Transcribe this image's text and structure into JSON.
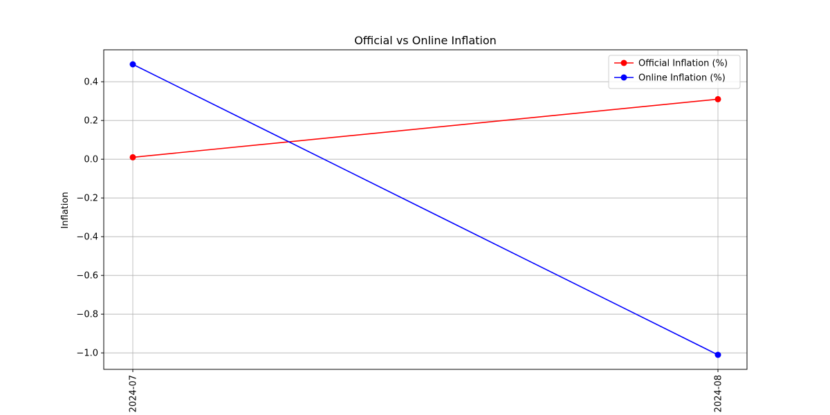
{
  "chart_data": {
    "type": "line",
    "title": "Official vs Online Inflation",
    "xlabel": "",
    "ylabel": "Inflation",
    "x": [
      "2024-07",
      "2024-08"
    ],
    "series": [
      {
        "name": "Official Inflation (%)",
        "values": [
          0.01,
          0.31
        ],
        "color": "#ff0000",
        "marker": "circle"
      },
      {
        "name": "Online Inflation (%)",
        "values": [
          0.49,
          -1.01
        ],
        "color": "#0000ff",
        "marker": "circle"
      }
    ],
    "ylim": [
      -1.085,
      0.565
    ],
    "yticks": [
      {
        "value": -1.0,
        "label": "−1.0"
      },
      {
        "value": -0.8,
        "label": "−0.8"
      },
      {
        "value": -0.6,
        "label": "−0.6"
      },
      {
        "value": -0.4,
        "label": "−0.4"
      },
      {
        "value": -0.2,
        "label": "−0.2"
      },
      {
        "value": 0.0,
        "label": "0.0"
      },
      {
        "value": 0.2,
        "label": "0.2"
      },
      {
        "value": 0.4,
        "label": "0.4"
      }
    ],
    "grid": true,
    "legend_position": "top-right",
    "xtick_rotation": "vertical",
    "gridline_color": "#b0b0b0",
    "axis_color": "#000000"
  }
}
